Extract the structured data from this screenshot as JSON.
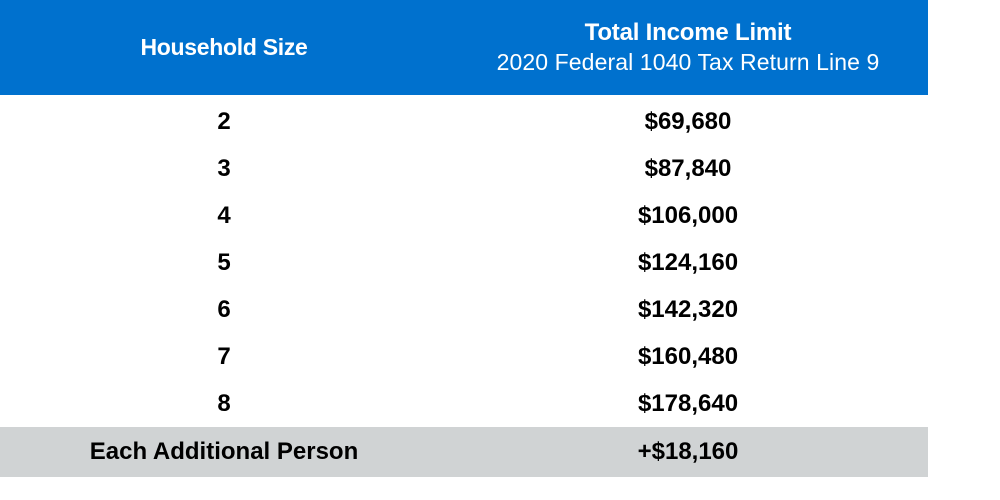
{
  "table": {
    "header": {
      "household_size": "Household Size",
      "income_title": "Total Income Limit",
      "income_subtitle": "2020 Federal 1040 Tax Return Line 9"
    },
    "rows": [
      {
        "size": "2",
        "limit": "$69,680"
      },
      {
        "size": "3",
        "limit": "$87,840"
      },
      {
        "size": "4",
        "limit": "$106,000"
      },
      {
        "size": "5",
        "limit": "$124,160"
      },
      {
        "size": "6",
        "limit": "$142,320"
      },
      {
        "size": "7",
        "limit": "$160,480"
      },
      {
        "size": "8",
        "limit": "$178,640"
      }
    ],
    "additional": {
      "label": "Each Additional Person",
      "limit": "+$18,160"
    }
  },
  "colors": {
    "header_background": "#0071ce",
    "header_text": "#ffffff",
    "footer_background": "#d0d3d4"
  }
}
